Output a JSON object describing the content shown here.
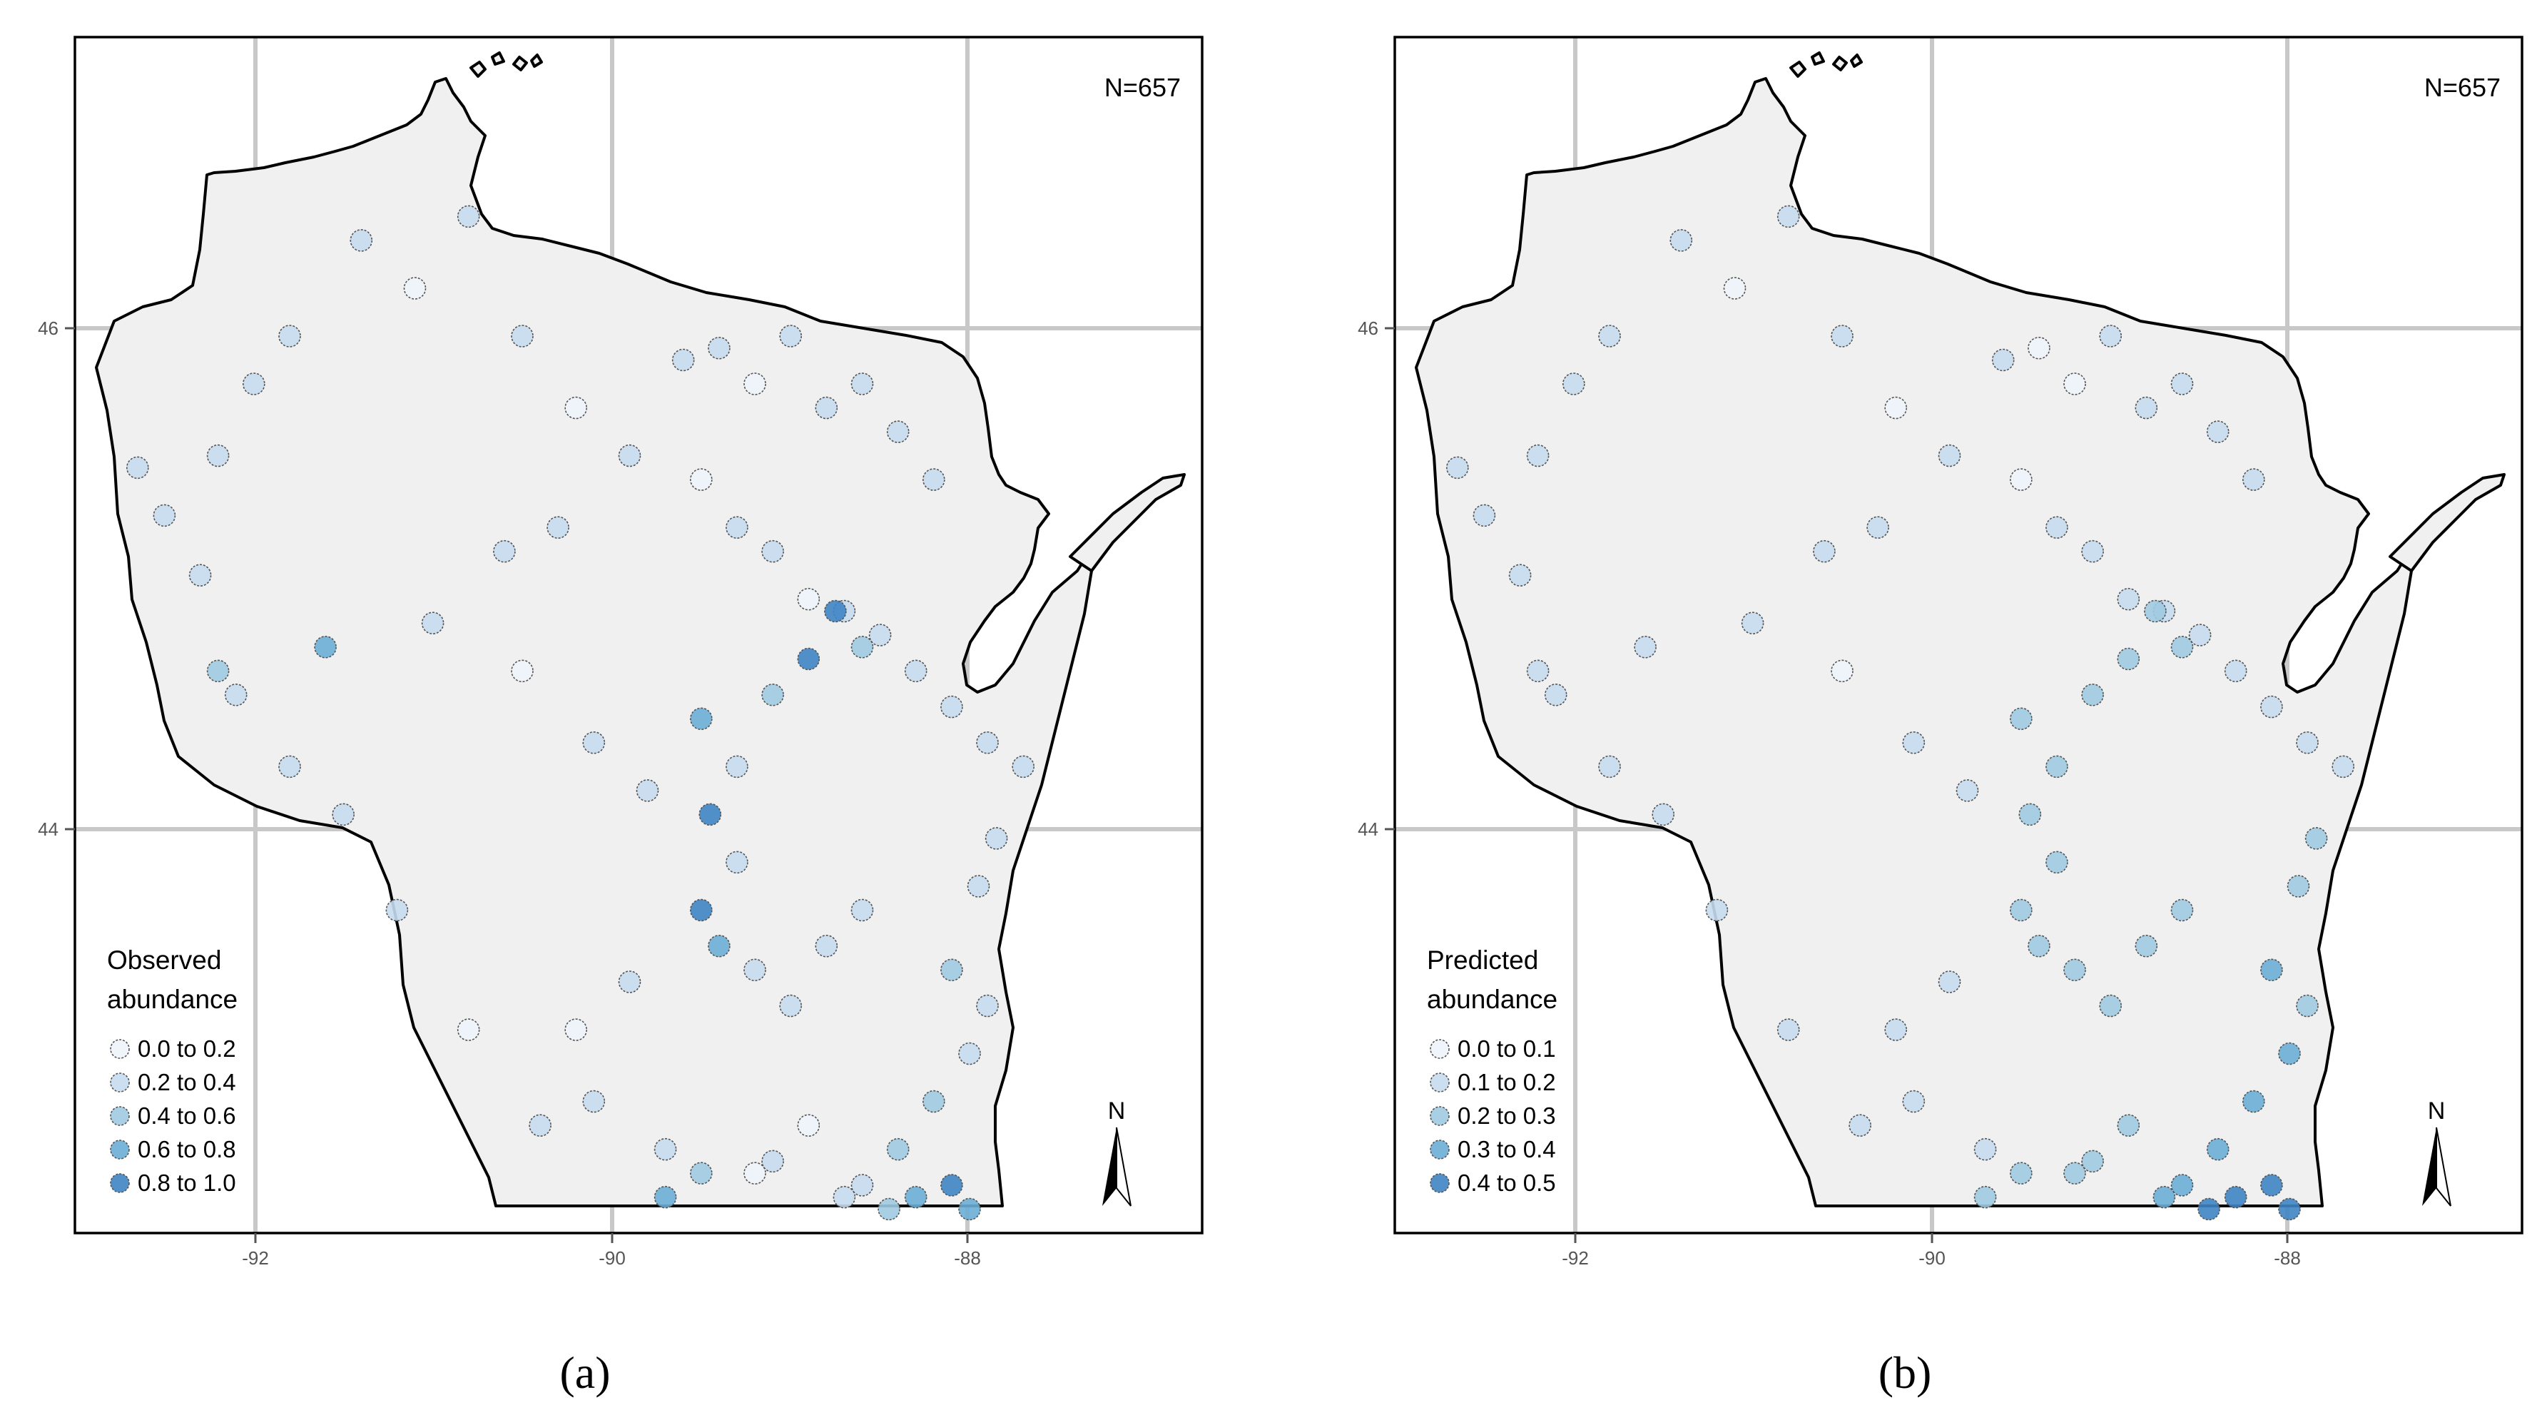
{
  "figure": {
    "panels": [
      {
        "label": "(a)",
        "count_text": "N=657",
        "legend": {
          "title_line1": "Observed",
          "title_line2": "abundance",
          "classes": [
            {
              "label": "0.0 to 0.2",
              "color": "#eef4fb"
            },
            {
              "label": "0.2 to 0.4",
              "color": "#c6dbef"
            },
            {
              "label": "0.4 to 0.6",
              "color": "#9ecae1"
            },
            {
              "label": "0.6 to 0.8",
              "color": "#6baed6"
            },
            {
              "label": "0.8 to 1.0",
              "color": "#3f84c4"
            }
          ]
        },
        "x_ticks": [
          "-92",
          "-90",
          "-88"
        ],
        "y_ticks": [
          "46",
          "44"
        ],
        "north_label": "N"
      },
      {
        "label": "(b)",
        "count_text": "N=657",
        "legend": {
          "title_line1": "Predicted",
          "title_line2": "abundance",
          "classes": [
            {
              "label": "0.0 to 0.1",
              "color": "#eef4fb"
            },
            {
              "label": "0.1 to 0.2",
              "color": "#c6dbef"
            },
            {
              "label": "0.2 to 0.3",
              "color": "#9ecae1"
            },
            {
              "label": "0.3 to 0.4",
              "color": "#6baed6"
            },
            {
              "label": "0.4 to 0.5",
              "color": "#3f84c4"
            }
          ]
        },
        "x_ticks": [
          "-92",
          "-90",
          "-88"
        ],
        "y_ticks": [
          "46",
          "44"
        ],
        "north_label": "N"
      }
    ]
  },
  "chart_data": {
    "type": "scatter",
    "note_values": "points are longitude (x, degrees) and latitude (y, degrees) with abundance class index 0-4",
    "xlim": [
      -93.0,
      -86.7
    ],
    "ylim": [
      42.35,
      47.35
    ],
    "x_ticks": [
      -92,
      -90,
      -88
    ],
    "y_ticks": [
      46,
      44
    ],
    "panels": [
      {
        "name": "Observed abundance",
        "points": [
          [
            -92.65,
            45.55,
            1
          ],
          [
            -92.5,
            45.35,
            1
          ],
          [
            -92.3,
            45.1,
            1
          ],
          [
            -92.2,
            45.6,
            1
          ],
          [
            -92.0,
            45.9,
            1
          ],
          [
            -91.8,
            46.1,
            1
          ],
          [
            -91.4,
            46.5,
            1
          ],
          [
            -91.1,
            46.3,
            0
          ],
          [
            -90.8,
            46.6,
            1
          ],
          [
            -90.5,
            46.1,
            1
          ],
          [
            -90.2,
            45.8,
            0
          ],
          [
            -89.9,
            45.6,
            1
          ],
          [
            -89.6,
            46.0,
            1
          ],
          [
            -89.4,
            46.05,
            1
          ],
          [
            -89.2,
            45.9,
            0
          ],
          [
            -89.0,
            46.1,
            1
          ],
          [
            -88.8,
            45.8,
            1
          ],
          [
            -88.6,
            45.9,
            1
          ],
          [
            -88.4,
            45.7,
            1
          ],
          [
            -88.2,
            45.5,
            1
          ],
          [
            -89.5,
            45.5,
            0
          ],
          [
            -89.3,
            45.3,
            1
          ],
          [
            -89.1,
            45.2,
            1
          ],
          [
            -88.9,
            45.0,
            0
          ],
          [
            -88.7,
            44.95,
            1
          ],
          [
            -88.5,
            44.85,
            1
          ],
          [
            -88.3,
            44.7,
            1
          ],
          [
            -88.1,
            44.55,
            1
          ],
          [
            -87.9,
            44.4,
            1
          ],
          [
            -87.7,
            44.3,
            1
          ],
          [
            -92.2,
            44.7,
            2
          ],
          [
            -91.6,
            44.8,
            3
          ],
          [
            -91.0,
            44.9,
            1
          ],
          [
            -90.5,
            44.7,
            0
          ],
          [
            -90.1,
            44.4,
            1
          ],
          [
            -89.8,
            44.2,
            1
          ],
          [
            -89.5,
            44.5,
            3
          ],
          [
            -89.3,
            44.3,
            1
          ],
          [
            -89.1,
            44.6,
            2
          ],
          [
            -88.9,
            44.75,
            4
          ],
          [
            -88.75,
            44.95,
            4
          ],
          [
            -88.6,
            44.8,
            2
          ],
          [
            -89.45,
            44.1,
            4
          ],
          [
            -89.3,
            43.9,
            1
          ],
          [
            -89.5,
            43.7,
            4
          ],
          [
            -89.4,
            43.55,
            3
          ],
          [
            -89.2,
            43.45,
            1
          ],
          [
            -89.0,
            43.3,
            1
          ],
          [
            -88.8,
            43.55,
            1
          ],
          [
            -88.6,
            43.7,
            1
          ],
          [
            -89.9,
            43.4,
            1
          ],
          [
            -90.2,
            43.2,
            0
          ],
          [
            -90.1,
            42.9,
            1
          ],
          [
            -89.7,
            42.7,
            1
          ],
          [
            -89.5,
            42.6,
            2
          ],
          [
            -89.1,
            42.65,
            1
          ],
          [
            -88.9,
            42.8,
            0
          ],
          [
            -88.6,
            42.55,
            1
          ],
          [
            -88.4,
            42.7,
            2
          ],
          [
            -88.2,
            42.9,
            2
          ],
          [
            -88.0,
            43.1,
            1
          ],
          [
            -87.9,
            43.3,
            1
          ],
          [
            -88.1,
            43.45,
            2
          ],
          [
            -87.95,
            43.8,
            1
          ],
          [
            -87.85,
            44.0,
            1
          ],
          [
            -88.3,
            42.5,
            3
          ],
          [
            -88.1,
            42.55,
            4
          ],
          [
            -88.0,
            42.45,
            3
          ],
          [
            -88.45,
            42.45,
            2
          ],
          [
            -88.7,
            42.5,
            1
          ],
          [
            -89.2,
            42.6,
            0
          ],
          [
            -89.7,
            42.5,
            3
          ],
          [
            -90.4,
            42.8,
            1
          ],
          [
            -90.8,
            43.2,
            0
          ],
          [
            -91.2,
            43.7,
            1
          ],
          [
            -91.5,
            44.1,
            1
          ],
          [
            -91.8,
            44.3,
            1
          ],
          [
            -92.1,
            44.6,
            1
          ],
          [
            -90.6,
            45.2,
            1
          ],
          [
            -90.3,
            45.3,
            1
          ]
        ]
      },
      {
        "name": "Predicted abundance",
        "points": [
          [
            -92.65,
            45.55,
            1
          ],
          [
            -92.5,
            45.35,
            1
          ],
          [
            -92.3,
            45.1,
            1
          ],
          [
            -92.2,
            45.6,
            1
          ],
          [
            -92.0,
            45.9,
            1
          ],
          [
            -91.8,
            46.1,
            1
          ],
          [
            -91.4,
            46.5,
            1
          ],
          [
            -91.1,
            46.3,
            0
          ],
          [
            -90.8,
            46.6,
            1
          ],
          [
            -90.5,
            46.1,
            1
          ],
          [
            -90.2,
            45.8,
            0
          ],
          [
            -89.9,
            45.6,
            1
          ],
          [
            -89.6,
            46.0,
            1
          ],
          [
            -89.4,
            46.05,
            0
          ],
          [
            -89.2,
            45.9,
            0
          ],
          [
            -89.0,
            46.1,
            1
          ],
          [
            -88.8,
            45.8,
            1
          ],
          [
            -88.6,
            45.9,
            1
          ],
          [
            -88.4,
            45.7,
            1
          ],
          [
            -88.2,
            45.5,
            1
          ],
          [
            -89.5,
            45.5,
            0
          ],
          [
            -89.3,
            45.3,
            1
          ],
          [
            -89.1,
            45.2,
            1
          ],
          [
            -88.9,
            45.0,
            1
          ],
          [
            -88.7,
            44.95,
            1
          ],
          [
            -88.5,
            44.85,
            1
          ],
          [
            -88.3,
            44.7,
            1
          ],
          [
            -88.1,
            44.55,
            1
          ],
          [
            -87.9,
            44.4,
            1
          ],
          [
            -87.7,
            44.3,
            1
          ],
          [
            -92.2,
            44.7,
            1
          ],
          [
            -91.6,
            44.8,
            1
          ],
          [
            -91.0,
            44.9,
            1
          ],
          [
            -90.5,
            44.7,
            0
          ],
          [
            -90.1,
            44.4,
            1
          ],
          [
            -89.8,
            44.2,
            1
          ],
          [
            -89.5,
            44.5,
            2
          ],
          [
            -89.3,
            44.3,
            2
          ],
          [
            -89.1,
            44.6,
            2
          ],
          [
            -88.9,
            44.75,
            2
          ],
          [
            -88.75,
            44.95,
            2
          ],
          [
            -88.6,
            44.8,
            2
          ],
          [
            -89.45,
            44.1,
            2
          ],
          [
            -89.3,
            43.9,
            2
          ],
          [
            -89.5,
            43.7,
            2
          ],
          [
            -89.4,
            43.55,
            2
          ],
          [
            -89.2,
            43.45,
            2
          ],
          [
            -89.0,
            43.3,
            2
          ],
          [
            -88.8,
            43.55,
            2
          ],
          [
            -88.6,
            43.7,
            2
          ],
          [
            -89.9,
            43.4,
            1
          ],
          [
            -90.2,
            43.2,
            1
          ],
          [
            -90.1,
            42.9,
            1
          ],
          [
            -89.7,
            42.7,
            1
          ],
          [
            -89.5,
            42.6,
            2
          ],
          [
            -89.1,
            42.65,
            2
          ],
          [
            -88.9,
            42.8,
            2
          ],
          [
            -88.6,
            42.55,
            3
          ],
          [
            -88.4,
            42.7,
            3
          ],
          [
            -88.2,
            42.9,
            3
          ],
          [
            -88.0,
            43.1,
            3
          ],
          [
            -87.9,
            43.3,
            2
          ],
          [
            -88.1,
            43.45,
            3
          ],
          [
            -87.95,
            43.8,
            2
          ],
          [
            -87.85,
            44.0,
            2
          ],
          [
            -88.3,
            42.5,
            4
          ],
          [
            -88.1,
            42.55,
            4
          ],
          [
            -88.0,
            42.45,
            4
          ],
          [
            -88.45,
            42.45,
            4
          ],
          [
            -88.7,
            42.5,
            3
          ],
          [
            -89.2,
            42.6,
            2
          ],
          [
            -89.7,
            42.5,
            2
          ],
          [
            -90.4,
            42.8,
            1
          ],
          [
            -90.8,
            43.2,
            1
          ],
          [
            -91.2,
            43.7,
            1
          ],
          [
            -91.5,
            44.1,
            1
          ],
          [
            -91.8,
            44.3,
            1
          ],
          [
            -92.1,
            44.6,
            1
          ],
          [
            -90.6,
            45.2,
            1
          ],
          [
            -90.3,
            45.3,
            1
          ]
        ]
      }
    ]
  }
}
